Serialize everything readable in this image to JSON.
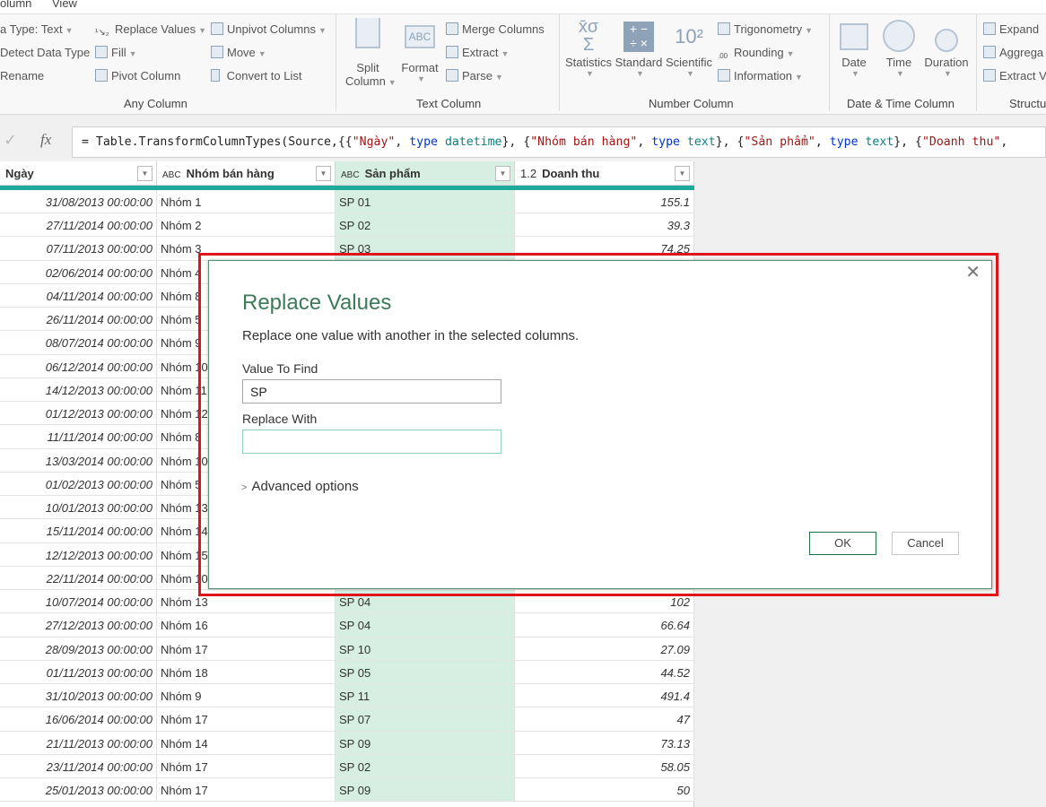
{
  "tabs": [
    "olumn",
    "View"
  ],
  "ribbon": {
    "any_column": {
      "label": "Any Column",
      "items": [
        "a Type: Text",
        "Detect Data Type",
        "Rename",
        "Replace Values",
        "Fill",
        "Pivot Column",
        "Unpivot Columns",
        "Move",
        "Convert to List"
      ]
    },
    "text_column": {
      "label": "Text Column",
      "split": [
        "Split",
        "Column"
      ],
      "format": "Format",
      "items": [
        "Merge Columns",
        "Extract",
        "Parse"
      ]
    },
    "number_column": {
      "label": "Number Column",
      "big": [
        "Statistics",
        "Standard",
        "Scientific"
      ],
      "items": [
        "Trigonometry",
        "Rounding",
        "Information"
      ]
    },
    "datetime_column": {
      "label": "Date & Time Column",
      "big": [
        "Date",
        "Time",
        "Duration"
      ]
    },
    "structured_column": {
      "label": "Structu",
      "items": [
        "Expand",
        "Aggrega",
        "Extract V"
      ]
    }
  },
  "formula": {
    "check": "✓",
    "fx": "fx",
    "parts": [
      {
        "t": "= Table.TransformColumnTypes(Source,{{",
        "c": ""
      },
      {
        "t": "\"Ngày\"",
        "c": "str"
      },
      {
        "t": ", ",
        "c": ""
      },
      {
        "t": "type",
        "c": "kw"
      },
      {
        "t": " datetime",
        "c": "ty"
      },
      {
        "t": "}, {",
        "c": ""
      },
      {
        "t": "\"Nhóm bán hàng\"",
        "c": "str"
      },
      {
        "t": ", ",
        "c": ""
      },
      {
        "t": "type",
        "c": "kw"
      },
      {
        "t": " text",
        "c": "ty"
      },
      {
        "t": "}, {",
        "c": ""
      },
      {
        "t": "\"Sản phẩm\"",
        "c": "str"
      },
      {
        "t": ", ",
        "c": ""
      },
      {
        "t": "type",
        "c": "kw"
      },
      {
        "t": " text",
        "c": "ty"
      },
      {
        "t": "}, {",
        "c": ""
      },
      {
        "t": "\"Doanh thu\"",
        "c": "str"
      },
      {
        "t": ",",
        "c": ""
      }
    ]
  },
  "columns": [
    {
      "type": "",
      "name": "Ngày"
    },
    {
      "type": "ABC",
      "name": "Nhóm bán hàng"
    },
    {
      "type": "ABC",
      "name": "Sản phẩm"
    },
    {
      "type": "1.2",
      "name": "Doanh thu"
    }
  ],
  "rows": [
    [
      "31/08/2013 00:00:00",
      "Nhóm 1",
      "SP 01",
      "155.1"
    ],
    [
      "27/11/2014 00:00:00",
      "Nhóm 2",
      "SP 02",
      "39.3"
    ],
    [
      "07/11/2013 00:00:00",
      "Nhóm 3",
      "SP 03",
      "74.25"
    ],
    [
      "02/06/2014 00:00:00",
      "Nhóm 4",
      "",
      ""
    ],
    [
      "04/11/2014 00:00:00",
      "Nhóm 8",
      "",
      ""
    ],
    [
      "26/11/2014 00:00:00",
      "Nhóm 5",
      "",
      ""
    ],
    [
      "08/07/2014 00:00:00",
      "Nhóm 9",
      "",
      ""
    ],
    [
      "06/12/2014 00:00:00",
      "Nhóm 10",
      "",
      ""
    ],
    [
      "14/12/2013 00:00:00",
      "Nhóm 11",
      "",
      ""
    ],
    [
      "01/12/2013 00:00:00",
      "Nhóm 12",
      "",
      ""
    ],
    [
      "11/11/2014 00:00:00",
      "Nhóm 8",
      "",
      ""
    ],
    [
      "13/03/2014 00:00:00",
      "Nhóm 10",
      "",
      ""
    ],
    [
      "01/02/2013 00:00:00",
      "Nhóm 5",
      "",
      ""
    ],
    [
      "10/01/2013 00:00:00",
      "Nhóm 13",
      "",
      ""
    ],
    [
      "15/11/2014 00:00:00",
      "Nhóm 14",
      "",
      ""
    ],
    [
      "12/12/2013 00:00:00",
      "Nhóm 15",
      "",
      ""
    ],
    [
      "22/11/2014 00:00:00",
      "Nhóm 10",
      "",
      ""
    ],
    [
      "10/07/2014 00:00:00",
      "Nhóm 13",
      "SP 04",
      "102"
    ],
    [
      "27/12/2013 00:00:00",
      "Nhóm 16",
      "SP 04",
      "66.64"
    ],
    [
      "28/09/2013 00:00:00",
      "Nhóm 17",
      "SP 10",
      "27.09"
    ],
    [
      "01/11/2013 00:00:00",
      "Nhóm 18",
      "SP 05",
      "44.52"
    ],
    [
      "31/10/2013 00:00:00",
      "Nhóm 9",
      "SP 11",
      "491.4"
    ],
    [
      "16/06/2014 00:00:00",
      "Nhóm 17",
      "SP 07",
      "47"
    ],
    [
      "21/11/2013 00:00:00",
      "Nhóm 14",
      "SP 09",
      "73.13"
    ],
    [
      "23/11/2014 00:00:00",
      "Nhóm 17",
      "SP 02",
      "58.05"
    ],
    [
      "25/01/2013 00:00:00",
      "Nhóm 17",
      "SP 09",
      "50"
    ]
  ],
  "dialog": {
    "title": "Replace Values",
    "description": "Replace one value with another in the selected columns.",
    "find_label": "Value To Find",
    "find_value": "SP",
    "replace_label": "Replace With",
    "replace_value": "",
    "advanced": "Advanced options",
    "ok": "OK",
    "cancel": "Cancel",
    "close": "✕"
  },
  "colors": {
    "accent_green": "#217346",
    "teal": "#1fab9b",
    "selected_column": "#d6efe2",
    "highlight_frame": "#e0141b"
  }
}
